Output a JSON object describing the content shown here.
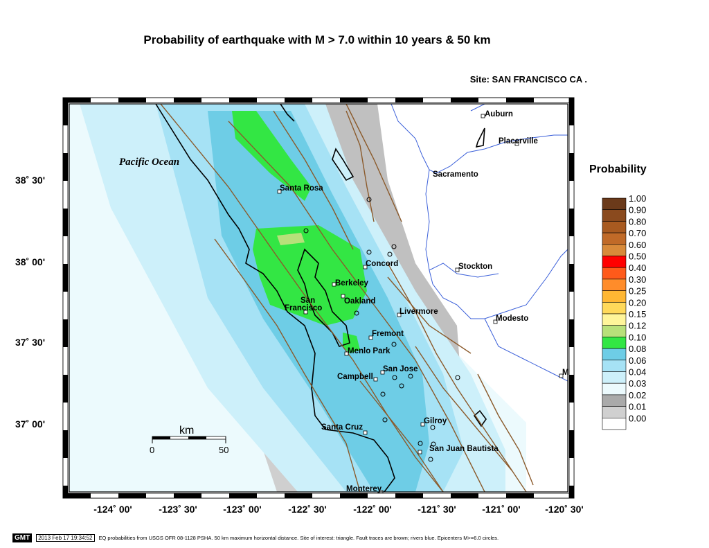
{
  "header": {
    "title": "Probability of earthquake with M > 7.0 within 10 years & 50 km",
    "site": "Site: SAN  FRANCISCO CA ."
  },
  "map": {
    "ocean_label": "Pacific Ocean",
    "lat_ticks": [
      "38˚ 30'",
      "38˚ 00'",
      "37˚ 30'",
      "37˚ 00'"
    ],
    "lon_ticks": [
      "-124˚ 00'",
      "-123˚ 30'",
      "-123˚ 00'",
      "-122˚ 30'",
      "-122˚ 00'",
      "-121˚ 30'",
      "-121˚ 00'",
      "-120˚ 30'"
    ],
    "cities": [
      {
        "name": "Auburn"
      },
      {
        "name": "Placerville"
      },
      {
        "name": "Sacramento"
      },
      {
        "name": "Santa Rosa"
      },
      {
        "name": "Concord"
      },
      {
        "name": "Stockton"
      },
      {
        "name": "Berkeley"
      },
      {
        "name": "Oakland"
      },
      {
        "name": "San"
      },
      {
        "name": "Francisco"
      },
      {
        "name": "Livermore"
      },
      {
        "name": "Modesto"
      },
      {
        "name": "Fremont"
      },
      {
        "name": "Menlo Park"
      },
      {
        "name": "San Jose"
      },
      {
        "name": "Campbell"
      },
      {
        "name": "M"
      },
      {
        "name": "Gilroy"
      },
      {
        "name": "Santa Cruz"
      },
      {
        "name": "San Juan Bautista"
      },
      {
        "name": "Monterey"
      }
    ],
    "scale": {
      "unit": "km",
      "start": "0",
      "end": "50"
    },
    "colors": {
      "fault": "#8b5a2b",
      "river": "#3a5fd9",
      "coast": "#000000"
    }
  },
  "legend": {
    "title": "Probability",
    "items": [
      {
        "label": "1.00",
        "color": "#6b3a1a"
      },
      {
        "label": "0.90",
        "color": "#8a4a1e"
      },
      {
        "label": "0.80",
        "color": "#a85a20"
      },
      {
        "label": "0.70",
        "color": "#c06a28"
      },
      {
        "label": "0.60",
        "color": "#d88a3a"
      },
      {
        "label": "0.50",
        "color": "#ff0000"
      },
      {
        "label": "0.40",
        "color": "#ff5a1a"
      },
      {
        "label": "0.30",
        "color": "#ff8c2a"
      },
      {
        "label": "0.25",
        "color": "#ffb733"
      },
      {
        "label": "0.20",
        "color": "#ffd95a"
      },
      {
        "label": "0.15",
        "color": "#fff59a"
      },
      {
        "label": "0.12",
        "color": "#b8e07a"
      },
      {
        "label": "0.10",
        "color": "#33e644"
      },
      {
        "label": "0.08",
        "color": "#6ecde6"
      },
      {
        "label": "0.06",
        "color": "#a6e2f5"
      },
      {
        "label": "0.04",
        "color": "#cdf0fa"
      },
      {
        "label": "0.03",
        "color": "#ecfafd"
      },
      {
        "label": "0.02",
        "color": "#aaaaaa"
      },
      {
        "label": "0.01",
        "color": "#d0d0d0"
      },
      {
        "label": "0.00",
        "color": "#ffffff"
      }
    ]
  },
  "footer": {
    "badge": "GMT",
    "timestamp": "2013 Feb 17 19:34:52",
    "note": "EQ probabilities from USGS OFR 08-1128 PSHA. 50 km maximum horizontal distance. Site of interest: triangle. Fault traces are brown; rivers blue. Epicenters M>=6.0 circles."
  }
}
